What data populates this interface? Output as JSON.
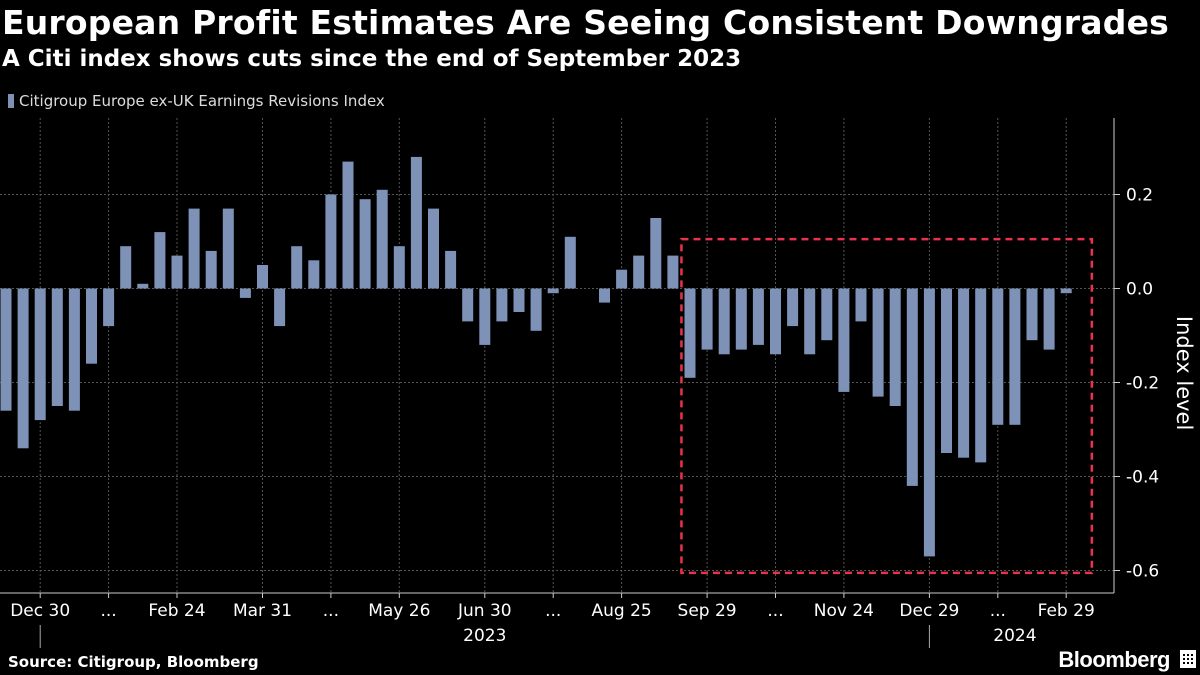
{
  "title": "European Profit Estimates Are Seeing Consistent Downgrades",
  "subtitle": "A Citi index shows cuts since the end of September 2023",
  "source": "Source: Citigroup, Bloomberg",
  "logo_text": "Bloomberg",
  "colors": {
    "background": "#000000",
    "bar": "#7e92b7",
    "highlight_box": "#e8334a",
    "grid": "#555555",
    "text": "#ffffff"
  },
  "chart_data": {
    "type": "bar",
    "ylabel": "Index level",
    "ylim": [
      -0.65,
      0.36
    ],
    "y_ticks": [
      0.2,
      0.0,
      -0.2,
      -0.4,
      -0.6
    ],
    "y_tick_labels": [
      "0.2",
      "0.0",
      "-0.2",
      "-0.4",
      "-0.6"
    ],
    "grid": true,
    "legend_position": "top-left",
    "series": [
      {
        "name": "Citigroup Europe ex-UK Earnings Revisions Index",
        "values": [
          -0.26,
          -0.34,
          -0.28,
          -0.25,
          -0.26,
          -0.16,
          -0.08,
          0.09,
          0.01,
          0.12,
          0.07,
          0.17,
          0.08,
          0.17,
          -0.02,
          0.05,
          -0.08,
          0.09,
          0.06,
          0.2,
          0.27,
          0.19,
          0.21,
          0.09,
          0.28,
          0.17,
          0.08,
          -0.07,
          -0.12,
          -0.07,
          -0.05,
          -0.09,
          -0.01,
          0.11,
          0.0,
          -0.03,
          0.04,
          0.07,
          0.15,
          0.07,
          -0.19,
          -0.13,
          -0.14,
          -0.13,
          -0.12,
          -0.14,
          -0.08,
          -0.14,
          -0.11,
          -0.22,
          -0.07,
          -0.23,
          -0.25,
          -0.42,
          -0.57,
          -0.35,
          -0.36,
          -0.37,
          -0.29,
          -0.29,
          -0.11,
          -0.13,
          -0.01
        ]
      }
    ],
    "x_tick_labels": [
      {
        "label": "Dec 30",
        "index": 2
      },
      {
        "label": "...",
        "index": 6
      },
      {
        "label": "Feb 24",
        "index": 10
      },
      {
        "label": "Mar 31",
        "index": 15
      },
      {
        "label": "...",
        "index": 19
      },
      {
        "label": "May 26",
        "index": 23
      },
      {
        "label": "Jun 30",
        "index": 28
      },
      {
        "label": "...",
        "index": 32
      },
      {
        "label": "Aug 25",
        "index": 36
      },
      {
        "label": "Sep 29",
        "index": 41
      },
      {
        "label": "...",
        "index": 45
      },
      {
        "label": "Nov 24",
        "index": 49
      },
      {
        "label": "Dec 29",
        "index": 54
      },
      {
        "label": "...",
        "index": 58
      },
      {
        "label": "Feb 29",
        "index": 62
      }
    ],
    "year_labels": [
      {
        "label": "2023",
        "index": 28
      },
      {
        "label": "2024",
        "index": 59
      }
    ],
    "year_separators": [
      2,
      54
    ],
    "highlight_box": {
      "from_index": 39.5,
      "to_index": 63.5,
      "y_top": 0.105,
      "y_bottom": -0.605
    }
  }
}
